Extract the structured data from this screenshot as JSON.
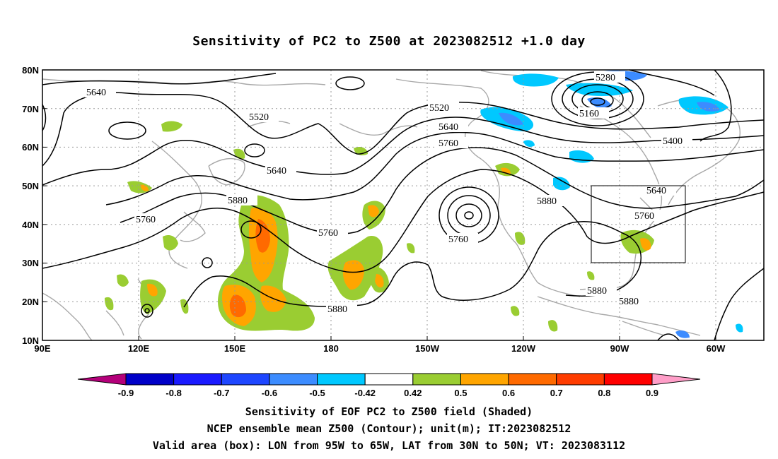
{
  "title": "Sensitivity of PC2 to Z500 at 2023082512 +1.0 day",
  "lat_labels": [
    "80N",
    "70N",
    "60N",
    "50N",
    "40N",
    "30N",
    "20N",
    "10N"
  ],
  "lon_labels": [
    "90E",
    "120E",
    "150E",
    "180",
    "150W",
    "120W",
    "90W",
    "60W"
  ],
  "contour_labels": [
    "5640",
    "5520",
    "5520",
    "5640",
    "5640",
    "5760",
    "5280",
    "5160",
    "5400",
    "5640",
    "5760",
    "5880",
    "5880",
    "5760",
    "5760",
    "5760",
    "5880",
    "5880",
    "5880"
  ],
  "colorbar": {
    "labels": [
      "-0.9",
      "-0.8",
      "-0.7",
      "-0.6",
      "-0.5",
      "-0.42",
      "0.42",
      "0.5",
      "0.6",
      "0.7",
      "0.8",
      "0.9"
    ],
    "colors": [
      "#b4007a",
      "#0000c8",
      "#1a1aff",
      "#1e46ff",
      "#3c8cff",
      "#00c8ff",
      "#ffffff",
      "#9acd32",
      "#ffa500",
      "#ff6a00",
      "#ff3c00",
      "#ff0000",
      "#ff9ec8"
    ]
  },
  "footer": [
    "Sensitivity of EOF PC2 to Z500 field (Shaded)",
    "NCEP ensemble mean Z500 (Contour); unit(m); IT:2023082512",
    "Valid area (box): LON from 95W to 65W, LAT from 30N to 50N; VT: 2023083112"
  ]
}
